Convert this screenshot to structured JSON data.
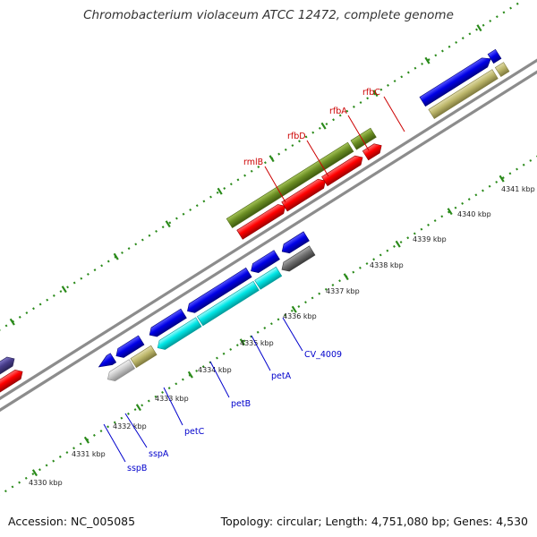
{
  "title": "Chromobacterium violaceum ATCC 12472, complete genome",
  "footer": {
    "accession_label": "Accession:",
    "accession": "NC_005085",
    "topology_label": "Topology:",
    "topology": "circular",
    "length_label": "Length:",
    "length": "4,751,080 bp",
    "genes_label": "Genes:",
    "genes": "4,530"
  },
  "colors": {
    "backbone": "#8c8c8c",
    "tick_dots": "#2a8a1a",
    "forward_label": "#cc0000",
    "reverse_label": "#0000cc",
    "cds_blue": "#0000e6",
    "cds_red": "#ff0000",
    "cds_cyan": "#00e6e6",
    "cds_olive": "#6b8e23",
    "cds_khaki": "#bdb76b",
    "cds_gray": "#6e6e6e",
    "cds_lightgray": "#c8c8c8",
    "cds_slate": "#483d8b"
  },
  "axis": {
    "unit": "kbp",
    "tick_labels": [
      "4330 kbp",
      "4331 kbp",
      "4332 kbp",
      "4333 kbp",
      "4334 kbp",
      "4335 kbp",
      "4336 kbp",
      "4337 kbp",
      "4338 kbp",
      "4339 kbp",
      "4340 kbp",
      "4341 kbp"
    ]
  },
  "gene_labels": {
    "forward": [
      "rmlB",
      "rfbD",
      "rfbA",
      "rfbC"
    ],
    "reverse": [
      "sspB",
      "sspA",
      "petC",
      "petB",
      "petA",
      "CV_4009"
    ]
  }
}
